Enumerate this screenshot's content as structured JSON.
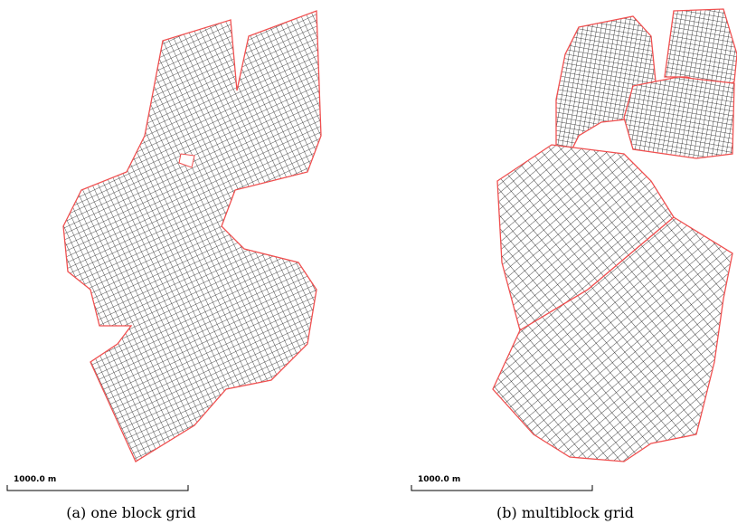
{
  "figure": {
    "panels": [
      {
        "scale_label": "1000.0 m",
        "caption": "(a) one block grid"
      },
      {
        "scale_label": "1000.0 m",
        "caption": "(b) multiblock grid"
      }
    ]
  }
}
